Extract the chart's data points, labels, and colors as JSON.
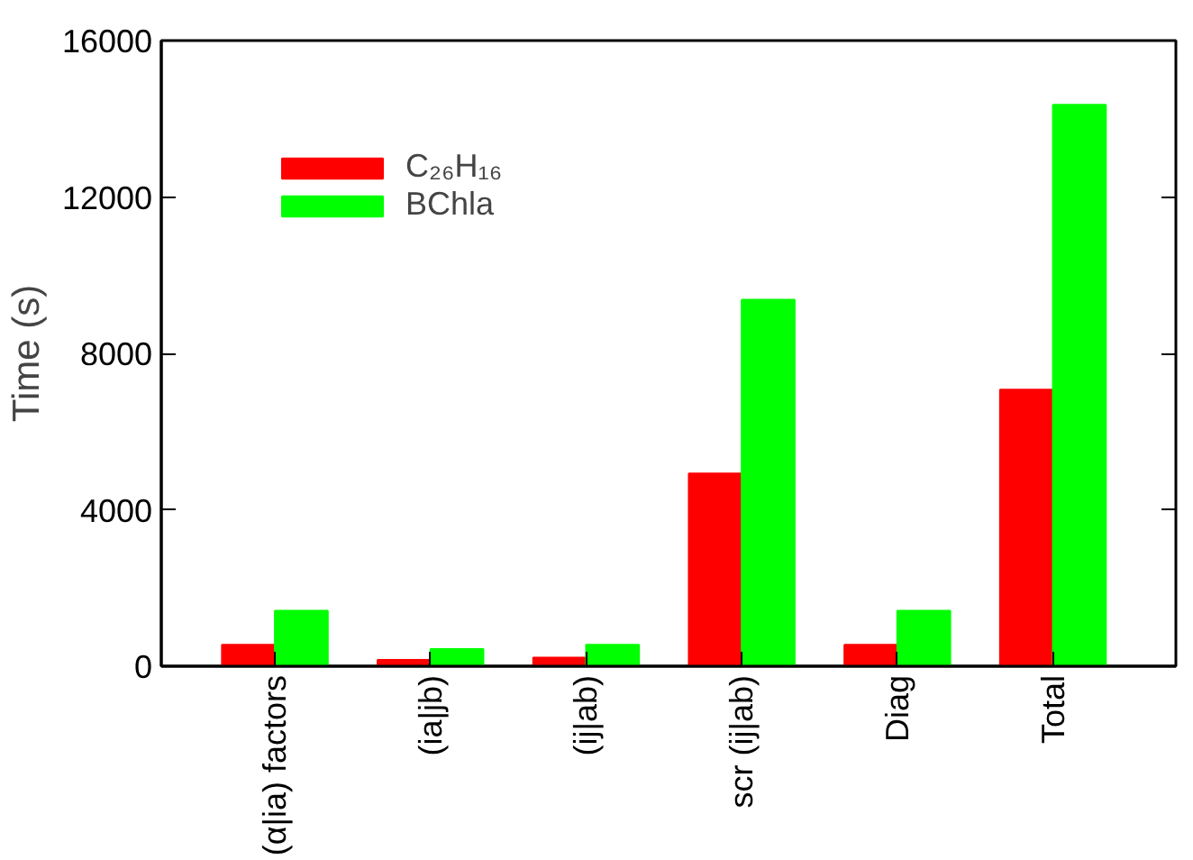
{
  "chart_data": {
    "type": "bar",
    "ylabel": "Time (s)",
    "categories": [
      "(α|ia) factors",
      "(ia|jb)",
      "(ij|ab)",
      "scr (ij|ab)",
      "Diag",
      "Total"
    ],
    "series": [
      {
        "name": "C₂₆H₁₆",
        "color": "#ff0000",
        "values": [
          550,
          160,
          220,
          4930,
          550,
          7070
        ]
      },
      {
        "name": "BChla",
        "color": "#00ff00",
        "values": [
          1420,
          440,
          550,
          9370,
          1420,
          14360
        ]
      }
    ],
    "ylim": [
      0,
      16000
    ],
    "yticks": [
      0,
      4000,
      8000,
      12000,
      16000
    ],
    "grid": false,
    "legend": "top left"
  }
}
